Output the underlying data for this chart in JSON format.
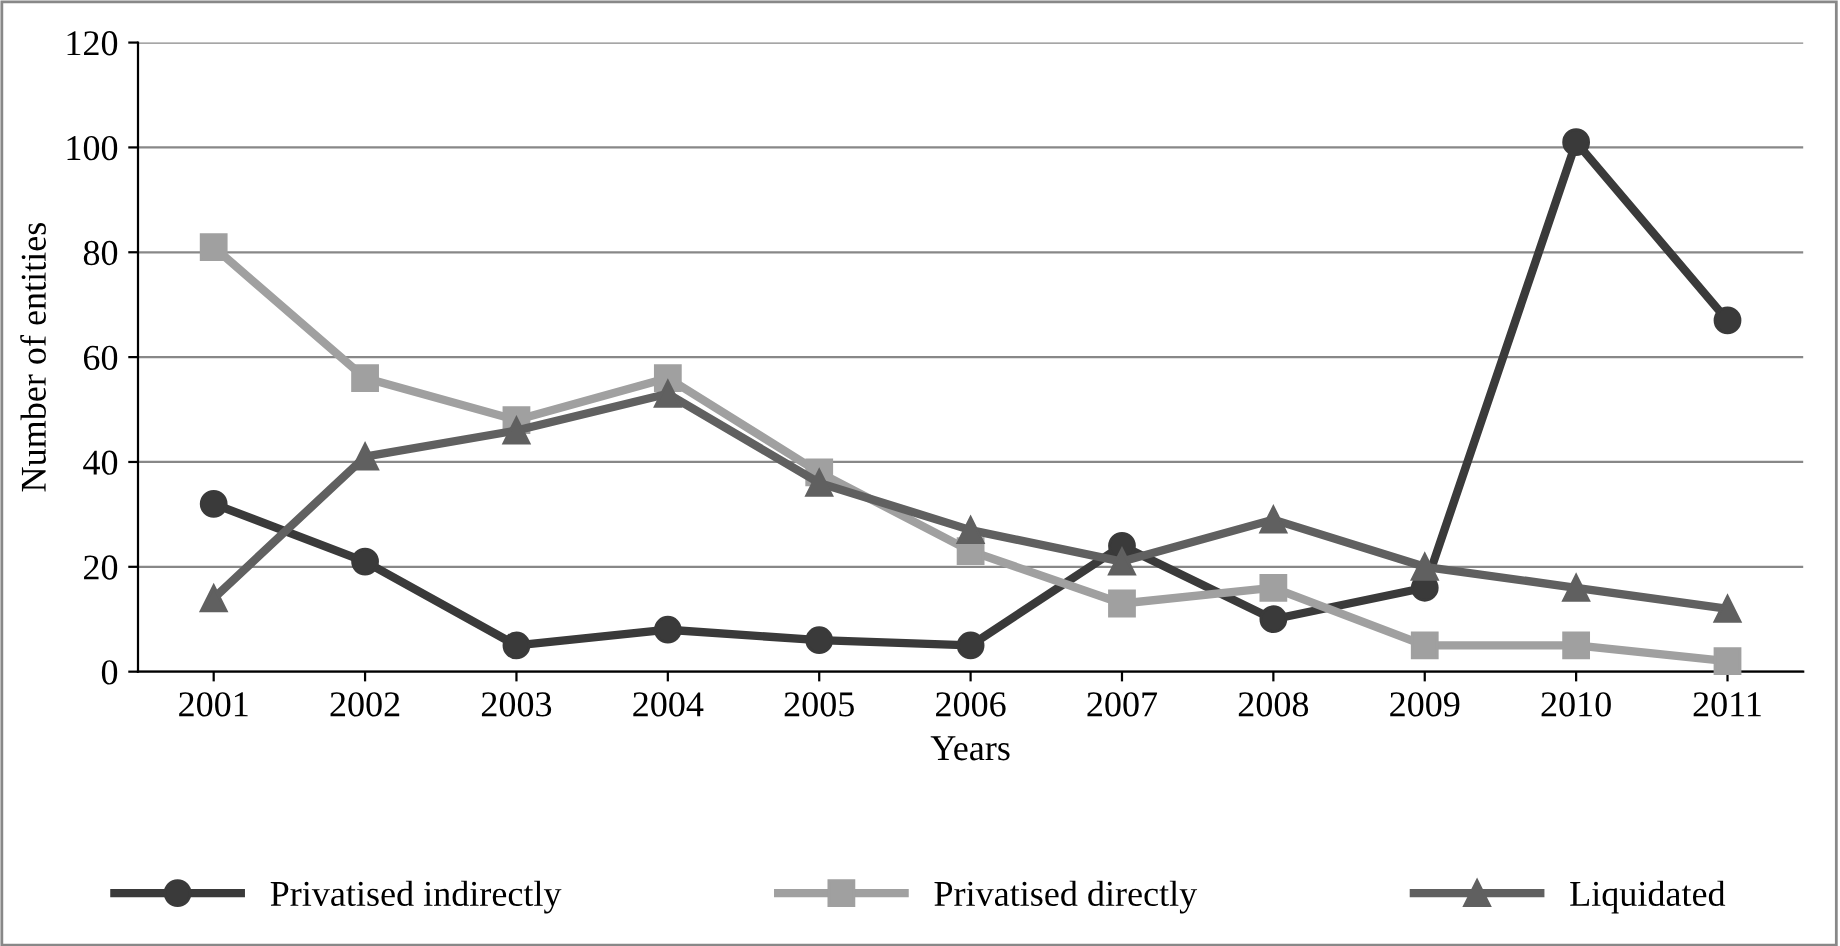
{
  "chart_data": {
    "type": "line",
    "xlabel": "Years",
    "ylabel": "Number of entities",
    "categories": [
      "2001",
      "2002",
      "2003",
      "2004",
      "2005",
      "2006",
      "2007",
      "2008",
      "2009",
      "2010",
      "2011"
    ],
    "series": [
      {
        "name": "Privatised indirectly",
        "color": "#3a3a3a",
        "marker": "circle",
        "values": [
          32,
          21,
          5,
          8,
          6,
          5,
          24,
          10,
          16,
          101,
          67
        ]
      },
      {
        "name": "Privatised directly",
        "color": "#a0a0a0",
        "marker": "square",
        "values": [
          81,
          56,
          48,
          56,
          38,
          23,
          13,
          16,
          5,
          5,
          2
        ]
      },
      {
        "name": "Liquidated",
        "color": "#606060",
        "marker": "triangle",
        "values": [
          14,
          41,
          46,
          53,
          36,
          27,
          21,
          29,
          20,
          16,
          12
        ]
      }
    ],
    "ylim": [
      0,
      120
    ],
    "yticks": [
      0,
      20,
      40,
      60,
      80,
      100,
      120
    ],
    "grid": "y",
    "legend": "bottom",
    "line_style": "solid"
  }
}
